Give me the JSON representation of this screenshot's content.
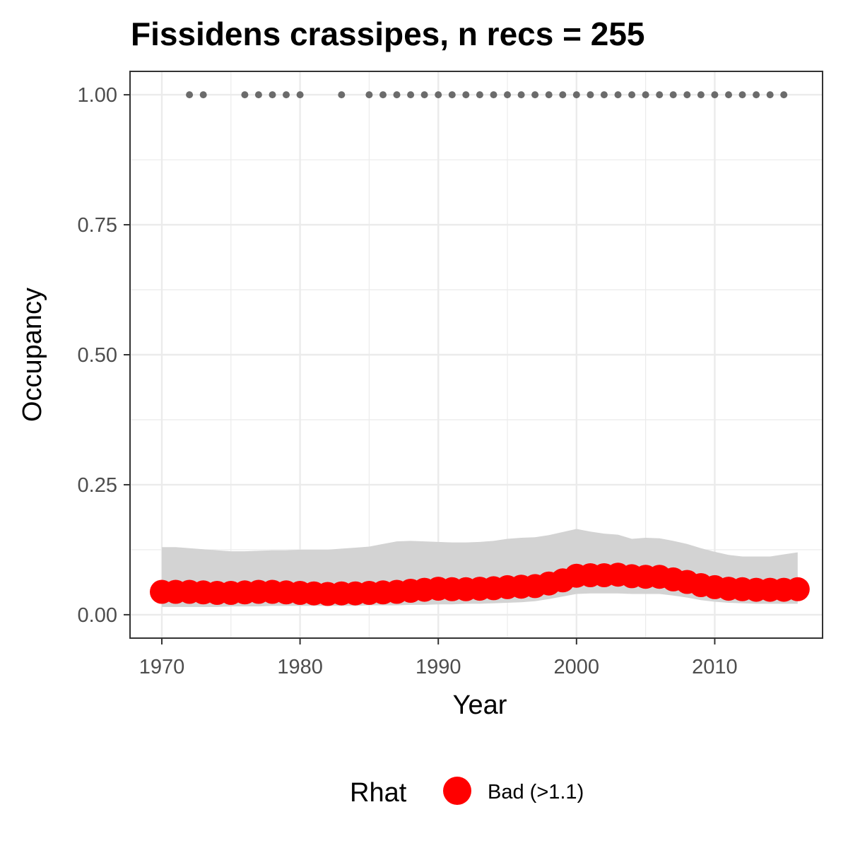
{
  "chart_data": {
    "type": "line",
    "title": "Fissidens crassipes, n recs = 255",
    "xlabel": "Year",
    "ylabel": "Occupancy",
    "xlim": [
      1967.7,
      2017.8
    ],
    "ylim": [
      -0.045,
      1.045
    ],
    "x_ticks": [
      1970,
      1980,
      1990,
      2000,
      2010
    ],
    "x_tick_labels": [
      "1970",
      "1980",
      "1990",
      "2000",
      "2010"
    ],
    "y_ticks": [
      0,
      0.25,
      0.5,
      0.75,
      1
    ],
    "y_tick_labels": [
      "0.00",
      "0.25",
      "0.50",
      "0.75",
      "1.00"
    ],
    "grid": true,
    "background": "#ffffff",
    "point_color": "#ff0000",
    "ribbon_color": "#d3d3d3",
    "detection_color": "#6b6b6b",
    "grid_color": "#ebebeb",
    "detections": {
      "y": 1.0,
      "years": [
        1972,
        1973,
        1976,
        1977,
        1978,
        1979,
        1980,
        1983,
        1985,
        1986,
        1987,
        1988,
        1989,
        1990,
        1991,
        1992,
        1993,
        1994,
        1995,
        1996,
        1997,
        1998,
        1999,
        2000,
        2001,
        2002,
        2003,
        2004,
        2005,
        2006,
        2007,
        2008,
        2009,
        2010,
        2011,
        2012,
        2013,
        2014,
        2015
      ]
    },
    "series": [
      {
        "x": [
          1970,
          1971,
          1972,
          1973,
          1974,
          1975,
          1976,
          1977,
          1978,
          1979,
          1980,
          1981,
          1982,
          1983,
          1984,
          1985,
          1986,
          1987,
          1988,
          1989,
          1990,
          1991,
          1992,
          1993,
          1994,
          1995,
          1996,
          1997,
          1998,
          1999,
          2000,
          2001,
          2002,
          2003,
          2004,
          2005,
          2006,
          2007,
          2008,
          2009,
          2010,
          2011,
          2012,
          2013,
          2014,
          2015,
          2016
        ],
        "values": [
          0.044,
          0.044,
          0.044,
          0.043,
          0.042,
          0.042,
          0.043,
          0.044,
          0.044,
          0.043,
          0.042,
          0.041,
          0.04,
          0.041,
          0.041,
          0.042,
          0.043,
          0.044,
          0.046,
          0.048,
          0.05,
          0.049,
          0.049,
          0.05,
          0.051,
          0.053,
          0.054,
          0.055,
          0.06,
          0.066,
          0.075,
          0.076,
          0.076,
          0.077,
          0.074,
          0.073,
          0.073,
          0.068,
          0.063,
          0.057,
          0.053,
          0.05,
          0.049,
          0.048,
          0.048,
          0.048,
          0.049
        ],
        "lower": [
          0.015,
          0.015,
          0.015,
          0.015,
          0.015,
          0.016,
          0.016,
          0.016,
          0.017,
          0.017,
          0.017,
          0.017,
          0.017,
          0.017,
          0.017,
          0.018,
          0.018,
          0.018,
          0.019,
          0.019,
          0.02,
          0.02,
          0.021,
          0.021,
          0.022,
          0.023,
          0.024,
          0.026,
          0.03,
          0.035,
          0.04,
          0.041,
          0.041,
          0.041,
          0.04,
          0.04,
          0.04,
          0.037,
          0.033,
          0.028,
          0.025,
          0.023,
          0.022,
          0.021,
          0.021,
          0.021,
          0.021
        ],
        "upper": [
          0.13,
          0.13,
          0.128,
          0.126,
          0.124,
          0.122,
          0.122,
          0.123,
          0.124,
          0.124,
          0.125,
          0.125,
          0.125,
          0.127,
          0.129,
          0.131,
          0.136,
          0.141,
          0.142,
          0.141,
          0.14,
          0.139,
          0.139,
          0.14,
          0.142,
          0.146,
          0.148,
          0.149,
          0.153,
          0.159,
          0.165,
          0.16,
          0.156,
          0.154,
          0.146,
          0.148,
          0.147,
          0.142,
          0.136,
          0.128,
          0.121,
          0.115,
          0.112,
          0.112,
          0.112,
          0.116,
          0.12
        ]
      }
    ],
    "legend": {
      "title": "Rhat",
      "entries": [
        {
          "label": "Bad (>1.1)",
          "color": "#ff0000"
        }
      ],
      "position": "bottom"
    }
  }
}
